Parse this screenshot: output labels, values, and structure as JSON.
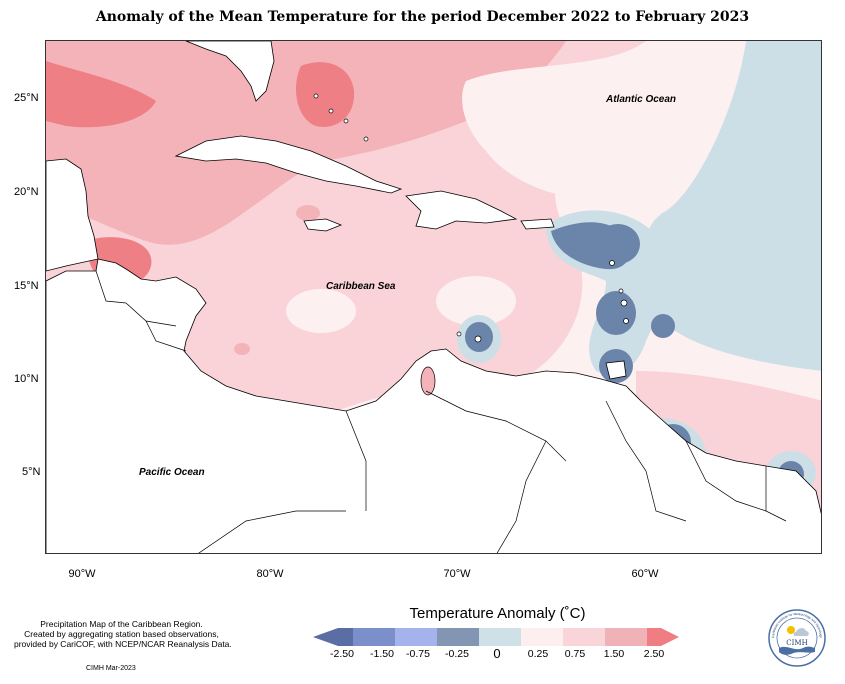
{
  "title": "Anomaly of the Mean Temperature for the period December 2022 to February 2023",
  "map": {
    "latitude_labels": [
      "25°N",
      "20°N",
      "15°N",
      "10°N",
      "5°N"
    ],
    "longitude_labels": [
      "90°W",
      "80°W",
      "70°W",
      "60°W"
    ],
    "ocean_labels": {
      "atlantic": "Atlantic Ocean",
      "caribbean": "Caribbean Sea",
      "pacific": "Pacific Ocean"
    },
    "colors": {
      "cool_strong": "#6b84aa",
      "cool_light": "#cddfe6",
      "neutral": "#fdf0f1",
      "warm_light": "#f9d3d8",
      "warm_mid": "#f3b3b8",
      "warm_strong": "#ee7f85",
      "land": "#ffffff"
    }
  },
  "legend": {
    "title": "Temperature Anomaly (˚C)",
    "ticks": [
      "-2.50",
      "-1.50",
      "-0.75",
      "-0.25",
      "0",
      "0.25",
      "0.75",
      "1.50",
      "2.50"
    ],
    "colors": [
      "#5a6ea4",
      "#7b8fcb",
      "#a4b3ec",
      "#8296b3",
      "#cfe0e7",
      "#fdeff0",
      "#f9d4d8",
      "#efb2b6",
      "#f07d82"
    ]
  },
  "credits": {
    "lines": [
      "Precipitation Map of the Caribbean Region.",
      "Created by aggregating station based observations,",
      "provided by CariCOF, with NCEP/NCAR Reanalysis Data."
    ],
    "date_note": "CIMH Mar-2023"
  },
  "logo": {
    "text": "CIMH",
    "ring_text": "Caribbean Institute for Meteorology and Hydrology"
  }
}
